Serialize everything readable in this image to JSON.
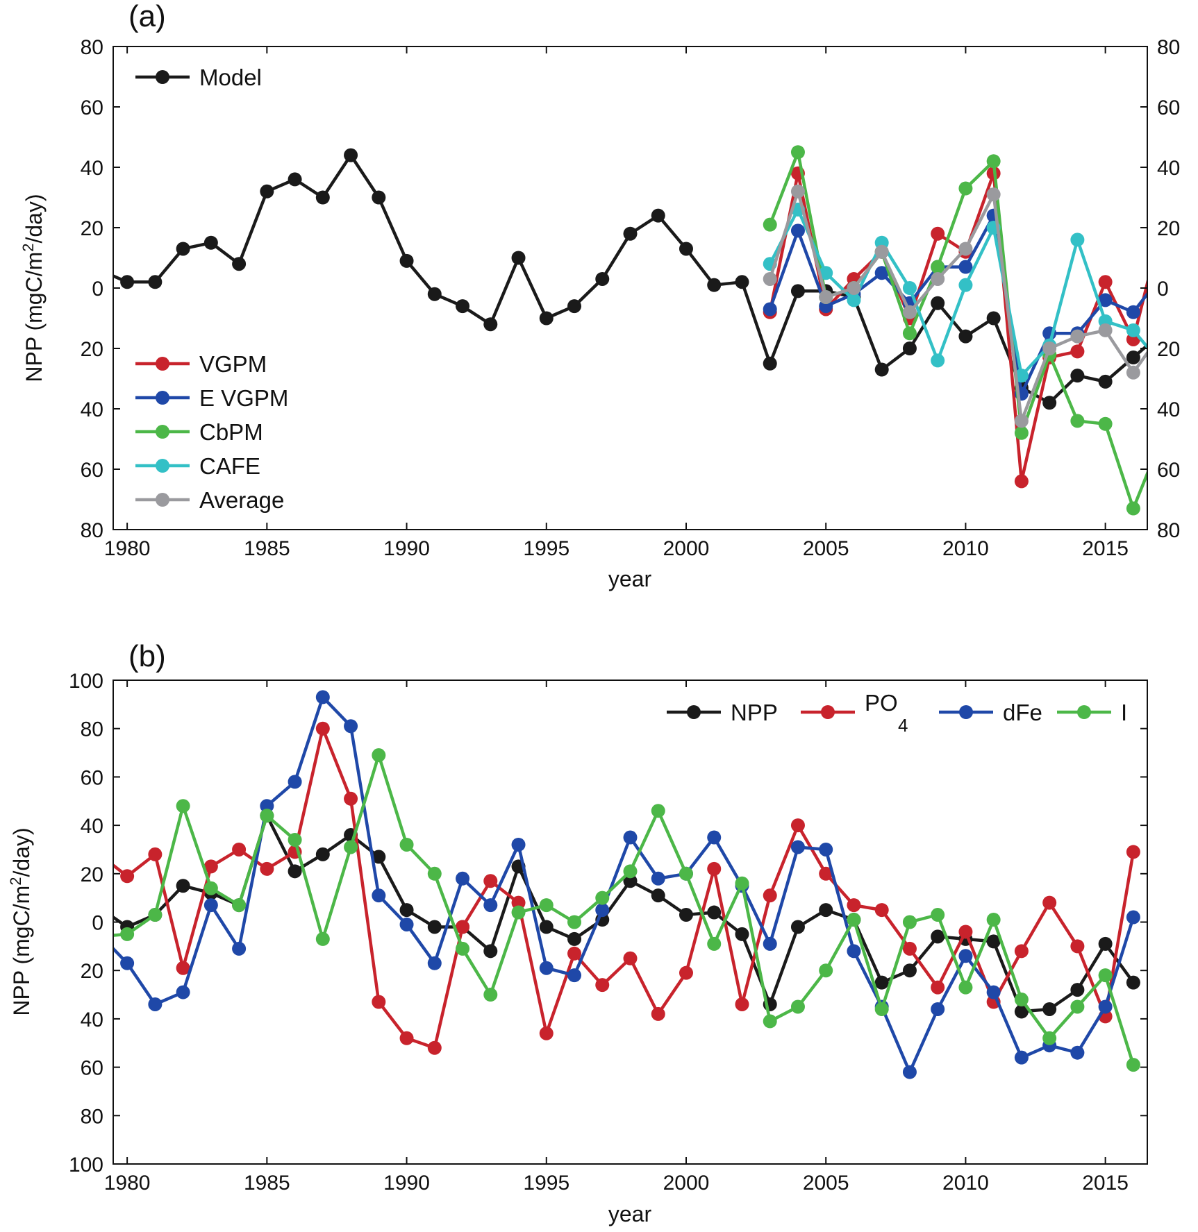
{
  "colors": {
    "black": "#1a1a1a",
    "red": "#c8232c",
    "blue": "#1f48a8",
    "green": "#4cb748",
    "cyan": "#33c0c6",
    "gray": "#9a9a9e"
  },
  "chart_data": [
    {
      "panel": "(a)",
      "type": "line",
      "xlabel": "year",
      "ylabel": "NPP (mgC/m²/day)",
      "xlim": [
        1979.5,
        2016.5
      ],
      "ylim": [
        -80,
        80
      ],
      "xticks": [
        "1980",
        "1985",
        "1990",
        "1995",
        "2000",
        "2005",
        "2010",
        "2015"
      ],
      "yticks": [
        "80",
        "60",
        "40",
        "20",
        "0",
        "20",
        "40",
        "60",
        "80"
      ],
      "right_yticks": [
        "80",
        "60",
        "40",
        "20",
        "0",
        "20",
        "40",
        "60",
        "80"
      ],
      "grid": false,
      "legend_top": [
        "Model"
      ],
      "legend_bottom": [
        "VGPM",
        "E  VGPM",
        "CbPM",
        "CAFE",
        "Average"
      ],
      "series": [
        {
          "name": "Model",
          "color": "black",
          "x": [
            1979,
            1980,
            1981,
            1982,
            1983,
            1984,
            1985,
            1986,
            1987,
            1988,
            1989,
            1990,
            1991,
            1992,
            1993,
            1994,
            1995,
            1996,
            1997,
            1998,
            1999,
            2000,
            2001,
            2002,
            2003,
            2004,
            2005,
            2006,
            2007,
            2008,
            2009,
            2010,
            2011,
            2012,
            2013,
            2014,
            2015,
            2016,
            2017
          ],
          "y": [
            6,
            2,
            2,
            13,
            15,
            8,
            32,
            36,
            30,
            44,
            30,
            9,
            -2,
            -6,
            -12,
            10,
            -10,
            -6,
            3,
            18,
            24,
            13,
            1,
            2,
            -25,
            -1,
            -1,
            -3,
            -27,
            -20,
            -5,
            -16,
            -10,
            -33,
            -38,
            -29,
            -31,
            -23,
            -15
          ]
        },
        {
          "name": "VGPM",
          "color": "red",
          "x": [
            2003,
            2004,
            2005,
            2006,
            2007,
            2008,
            2009,
            2010,
            2011,
            2012,
            2013,
            2014,
            2015,
            2016,
            2017
          ],
          "y": [
            -8,
            38,
            -7,
            3,
            12,
            -10,
            18,
            12,
            38,
            -64,
            -23,
            -21,
            2,
            -17,
            20
          ]
        },
        {
          "name": "E  VGPM",
          "color": "blue",
          "x": [
            2003,
            2004,
            2005,
            2006,
            2007,
            2008,
            2009,
            2010,
            2011,
            2012,
            2013,
            2014,
            2015,
            2016,
            2017
          ],
          "y": [
            -7,
            19,
            -6,
            -2,
            5,
            -5,
            7,
            7,
            24,
            -35,
            -15,
            -15,
            -4,
            -8,
            4
          ]
        },
        {
          "name": "CbPM",
          "color": "green",
          "x": [
            2003,
            2004,
            2005,
            2006,
            2007,
            2008,
            2009,
            2010,
            2011,
            2012,
            2013,
            2014,
            2015,
            2016,
            2017
          ],
          "y": [
            21,
            45,
            -3,
            0,
            12,
            -15,
            7,
            33,
            42,
            -48,
            -22,
            -44,
            -45,
            -73,
            -50
          ]
        },
        {
          "name": "CAFE",
          "color": "cyan",
          "x": [
            2003,
            2004,
            2005,
            2006,
            2007,
            2008,
            2009,
            2010,
            2011,
            2012,
            2013,
            2014,
            2015,
            2016,
            2017
          ],
          "y": [
            8,
            26,
            5,
            -4,
            15,
            0,
            -24,
            1,
            20,
            -29,
            -19,
            16,
            -11,
            -14,
            -25
          ]
        },
        {
          "name": "Average",
          "color": "gray",
          "x": [
            2003,
            2004,
            2005,
            2006,
            2007,
            2008,
            2009,
            2010,
            2011,
            2012,
            2013,
            2014,
            2015,
            2016,
            2017
          ],
          "y": [
            3,
            32,
            -3,
            0,
            12,
            -8,
            3,
            13,
            31,
            -44,
            -20,
            -16,
            -14,
            -28,
            -15
          ]
        }
      ]
    },
    {
      "panel": "(b)",
      "type": "line",
      "xlabel": "year",
      "ylabel": "NPP (mgC/m²/day)",
      "xlim": [
        1979.5,
        2016.5
      ],
      "ylim": [
        -100,
        100
      ],
      "xticks": [
        "1980",
        "1985",
        "1990",
        "1995",
        "2000",
        "2005",
        "2010",
        "2015"
      ],
      "yticks": [
        "100",
        "80",
        "60",
        "40",
        "20",
        "0",
        "20",
        "40",
        "60",
        "80",
        "100"
      ],
      "grid": false,
      "legend": [
        "NPP",
        "PO",
        "dFe",
        "I"
      ],
      "legend_subscript": "4",
      "series": [
        {
          "name": "NPP",
          "color": "black",
          "x": [
            1979,
            1980,
            1981,
            1982,
            1983,
            1984,
            1985,
            1986,
            1987,
            1988,
            1989,
            1990,
            1991,
            1992,
            1993,
            1994,
            1995,
            1996,
            1997,
            1998,
            1999,
            2000,
            2001,
            2002,
            2003,
            2004,
            2005,
            2006,
            2007,
            2008,
            2009,
            2010,
            2011,
            2012,
            2013,
            2014,
            2015,
            2016
          ],
          "y": [
            6,
            -2,
            3,
            15,
            12,
            7,
            44,
            21,
            28,
            36,
            27,
            5,
            -2,
            -2,
            -12,
            23,
            -2,
            -7,
            1,
            17,
            11,
            3,
            4,
            -5,
            -34,
            -2,
            5,
            1,
            -25,
            -20,
            -6,
            -7,
            -8,
            -37,
            -36,
            -28,
            -9,
            -25
          ]
        },
        {
          "name": "PO4",
          "color": "red",
          "x": [
            1979,
            1980,
            1981,
            1982,
            1983,
            1984,
            1985,
            1986,
            1987,
            1988,
            1989,
            1990,
            1991,
            1992,
            1993,
            1994,
            1995,
            1996,
            1997,
            1998,
            1999,
            2000,
            2001,
            2002,
            2003,
            2004,
            2005,
            2006,
            2007,
            2008,
            2009,
            2010,
            2011,
            2012,
            2013,
            2014,
            2015,
            2016
          ],
          "y": [
            28,
            19,
            28,
            -19,
            23,
            30,
            22,
            29,
            80,
            51,
            -33,
            -48,
            -52,
            -2,
            17,
            8,
            -46,
            -13,
            -26,
            -15,
            -38,
            -21,
            22,
            -34,
            11,
            40,
            20,
            7,
            5,
            -11,
            -27,
            -4,
            -33,
            -12,
            8,
            -10,
            -39,
            29
          ]
        },
        {
          "name": "dFe",
          "color": "blue",
          "x": [
            1979,
            1980,
            1981,
            1982,
            1983,
            1984,
            1985,
            1986,
            1987,
            1988,
            1989,
            1990,
            1991,
            1992,
            1993,
            1994,
            1995,
            1996,
            1997,
            1998,
            1999,
            2000,
            2001,
            2002,
            2003,
            2004,
            2005,
            2006,
            2007,
            2008,
            2009,
            2010,
            2011,
            2012,
            2013,
            2014,
            2015,
            2016
          ],
          "y": [
            -5,
            -17,
            -34,
            -29,
            7,
            -11,
            48,
            58,
            93,
            81,
            11,
            -1,
            -17,
            18,
            7,
            32,
            -19,
            -22,
            5,
            35,
            18,
            20,
            35,
            15,
            -9,
            31,
            30,
            -12,
            -35,
            -62,
            -36,
            -14,
            -29,
            -56,
            -51,
            -54,
            -35,
            2
          ]
        },
        {
          "name": "I",
          "color": "green",
          "x": [
            1979,
            1980,
            1981,
            1982,
            1983,
            1984,
            1985,
            1986,
            1987,
            1988,
            1989,
            1990,
            1991,
            1992,
            1993,
            1994,
            1995,
            1996,
            1997,
            1998,
            1999,
            2000,
            2001,
            2002,
            2003,
            2004,
            2005,
            2006,
            2007,
            2008,
            2009,
            2010,
            2011,
            2012,
            2013,
            2014,
            2015,
            2016
          ],
          "y": [
            -6,
            -5,
            3,
            48,
            14,
            7,
            44,
            34,
            -7,
            31,
            69,
            32,
            20,
            -11,
            -30,
            4,
            7,
            0,
            10,
            21,
            46,
            20,
            -9,
            16,
            -41,
            -35,
            -20,
            1,
            -36,
            0,
            3,
            -27,
            1,
            -32,
            -48,
            -35,
            -22,
            -59
          ]
        }
      ]
    }
  ]
}
